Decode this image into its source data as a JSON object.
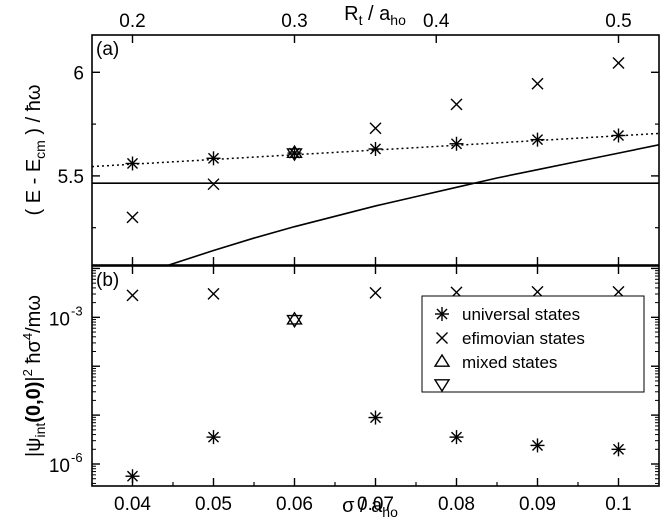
{
  "chart_data": [
    {
      "panel": "(a)",
      "type": "scatter",
      "xlabel": "σ / a_ho",
      "top_xlabel": "R_t / a_ho",
      "ylabel": "( E - E_cm ) / ħω",
      "xlim": [
        0.035,
        0.105
      ],
      "ylim": [
        5.07,
        6.18
      ],
      "x_ticks": [
        "0.04",
        "0.05",
        "0.06",
        "0.07",
        "0.08",
        "0.09",
        "0.1"
      ],
      "top_ticks": [
        {
          "label": "0.2",
          "sigma": 0.04
        },
        {
          "label": "0.3",
          "sigma": 0.06
        },
        {
          "label": "0.4",
          "sigma": 0.0775
        },
        {
          "label": "0.5",
          "sigma": 0.1
        }
      ],
      "y_ticks": [
        {
          "label": "5.5",
          "value": 5.5
        },
        {
          "label": "6",
          "value": 6.0
        }
      ],
      "series": [
        {
          "name": "universal states",
          "marker": "asterisk",
          "x": [
            0.04,
            0.05,
            0.06,
            0.07,
            0.08,
            0.09,
            0.1
          ],
          "y": [
            5.56,
            5.585,
            5.61,
            5.63,
            5.655,
            5.675,
            5.695
          ]
        },
        {
          "name": "efimovian states",
          "marker": "cross",
          "x": [
            0.04,
            0.05,
            0.07,
            0.08,
            0.09,
            0.1
          ],
          "y": [
            5.3,
            5.46,
            5.73,
            5.845,
            5.945,
            6.045
          ]
        },
        {
          "name": "mixed states",
          "marker": "triangle-up",
          "x": [
            0.06
          ],
          "y": [
            5.61
          ]
        },
        {
          "name": "mixed states",
          "marker": "triangle-down",
          "x": [
            0.06
          ],
          "y": [
            5.61
          ]
        }
      ],
      "lines": [
        {
          "style": "dotted",
          "x": [
            0.035,
            0.105
          ],
          "y": [
            5.545,
            5.705
          ]
        },
        {
          "style": "solid",
          "x": [
            0.035,
            0.105
          ],
          "y": [
            5.465,
            5.465
          ]
        },
        {
          "style": "solid",
          "x": [
            0.0445,
            0.05,
            0.055,
            0.06,
            0.065,
            0.07,
            0.075,
            0.08,
            0.085,
            0.09,
            0.095,
            0.1,
            0.105
          ],
          "y": [
            5.07,
            5.14,
            5.2,
            5.255,
            5.305,
            5.355,
            5.4,
            5.445,
            5.49,
            5.53,
            5.57,
            5.61,
            5.65
          ]
        }
      ]
    },
    {
      "panel": "(b)",
      "type": "scatter",
      "xlabel": "σ / a_ho",
      "ylabel": "|ψ_int(0,0)|² ħσ⁴/mω",
      "xlim": [
        0.035,
        0.105
      ],
      "log_y": true,
      "ylim_log10": [
        -6.45,
        -1.95
      ],
      "x_ticks": [
        "0.04",
        "0.05",
        "0.06",
        "0.07",
        "0.08",
        "0.09",
        "0.1"
      ],
      "y_ticks": [
        {
          "label": "10",
          "exp": "-3",
          "log10": -3
        },
        {
          "label": "10",
          "exp": "-6",
          "log10": -6
        }
      ],
      "series": [
        {
          "name": "universal states",
          "marker": "asterisk",
          "x": [
            0.04,
            0.05,
            0.07,
            0.08,
            0.09,
            0.1
          ],
          "log10_y": [
            -6.25,
            -5.45,
            -5.05,
            -5.45,
            -5.62,
            -5.7
          ]
        },
        {
          "name": "efimovian states",
          "marker": "cross",
          "x": [
            0.04,
            0.05,
            0.07,
            0.08,
            0.09,
            0.1
          ],
          "log10_y": [
            -2.55,
            -2.52,
            -2.5,
            -2.49,
            -2.48,
            -2.48
          ]
        },
        {
          "name": "mixed states",
          "marker": "triangle-up",
          "x": [
            0.06
          ],
          "log10_y": [
            -3.05
          ]
        },
        {
          "name": "mixed states",
          "marker": "triangle-down",
          "x": [
            0.06
          ],
          "log10_y": [
            -3.05
          ]
        }
      ],
      "legend": {
        "placement": "right",
        "entries": [
          {
            "marker": "asterisk",
            "label": "universal states"
          },
          {
            "marker": "cross",
            "label": "efimovian states"
          },
          {
            "marker": "triangle-up",
            "label": "mixed states"
          },
          {
            "marker": "triangle-down",
            "label": ""
          }
        ]
      }
    }
  ]
}
